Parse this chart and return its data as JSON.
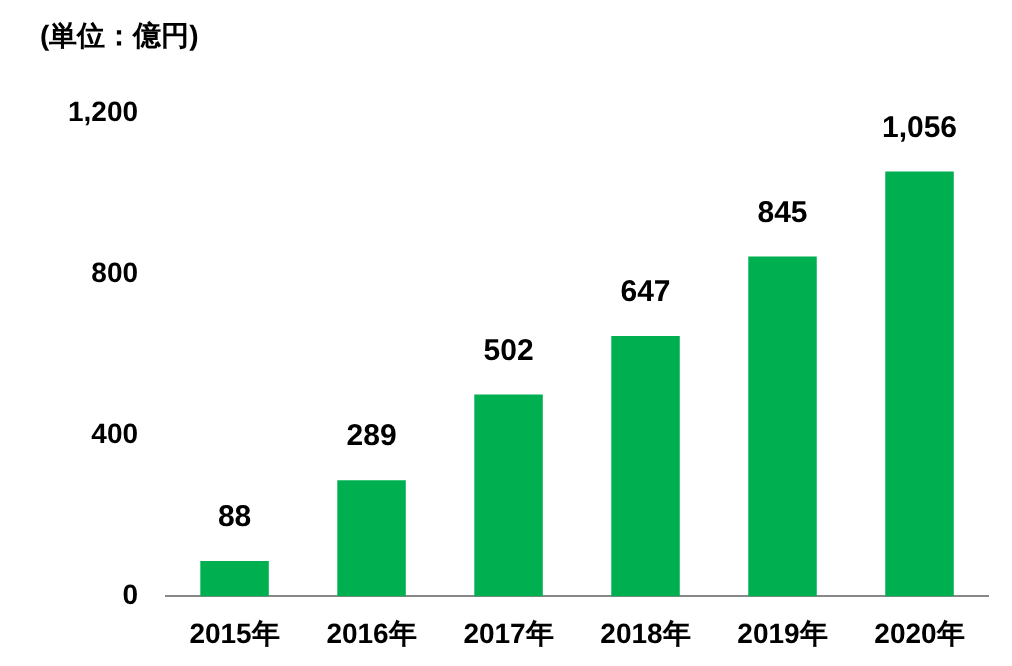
{
  "chart_data": {
    "type": "bar",
    "title": "(単位：億円)",
    "categories": [
      "2015年",
      "2016年",
      "2017年",
      "2018年",
      "2019年",
      "2020年"
    ],
    "values": [
      88,
      289,
      502,
      647,
      845,
      1056
    ],
    "value_labels": [
      "88",
      "289",
      "502",
      "647",
      "845",
      "1,056"
    ],
    "color": "#00b050",
    "ylim": [
      0,
      1200
    ],
    "yticks": [
      0,
      400,
      800,
      {
        "value": 1200,
        "label": "1,200"
      }
    ],
    "grid": false,
    "legend": false
  }
}
